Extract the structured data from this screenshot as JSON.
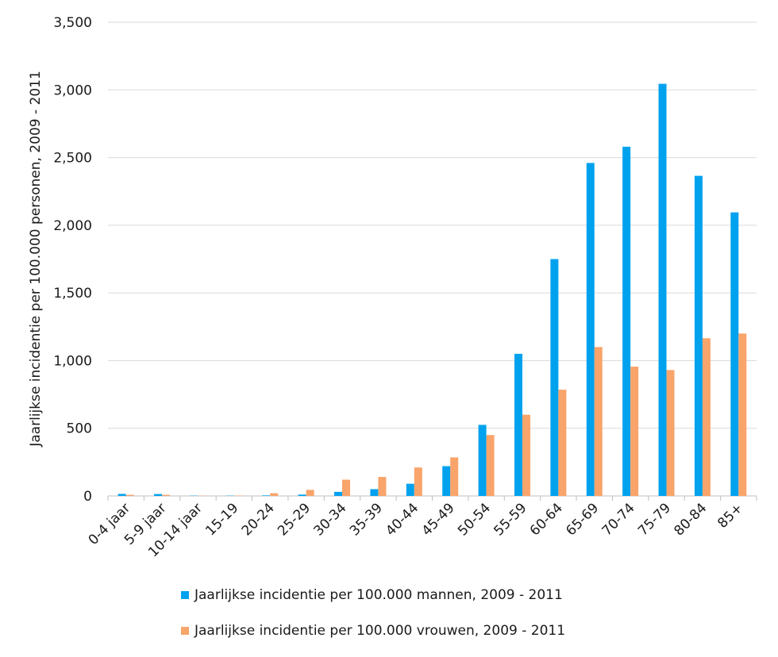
{
  "chart_data": {
    "type": "bar",
    "ylabel": "Jaarlijkse incidentie per 100.000 personen, 2009 - 2011",
    "xlabel": "",
    "ylim": [
      0,
      3500
    ],
    "yticks": [
      0,
      500,
      1000,
      1500,
      2000,
      2500,
      3000,
      3500
    ],
    "ytick_labels": [
      "0",
      "500",
      "1,000",
      "1,500",
      "2,000",
      "2,500",
      "3,000",
      "3,500"
    ],
    "grid": true,
    "legend_position": "bottom",
    "categories": [
      "0-4 jaar",
      "5-9 jaar",
      "10-14 jaar",
      "15-19",
      "20-24",
      "25-29",
      "30-34",
      "35-39",
      "40-44",
      "45-49",
      "50-54",
      "55-59",
      "60-64",
      "65-69",
      "70-74",
      "75-79",
      "80-84",
      "85+"
    ],
    "series": [
      {
        "name": "Jaarlijkse incidentie per 100.000 mannen, 2009 - 2011",
        "color": "#00A2EE",
        "values": [
          15,
          14,
          2,
          2,
          4,
          10,
          30,
          50,
          90,
          220,
          525,
          1050,
          1750,
          2460,
          2580,
          3045,
          2365,
          2095
        ]
      },
      {
        "name": "Jaarlijkse incidentie per 100.000 vrouwen, 2009 - 2011",
        "color": "#F9A46A",
        "values": [
          8,
          8,
          2,
          3,
          20,
          45,
          120,
          140,
          210,
          285,
          450,
          600,
          785,
          1100,
          955,
          930,
          1165,
          1200
        ]
      }
    ]
  }
}
